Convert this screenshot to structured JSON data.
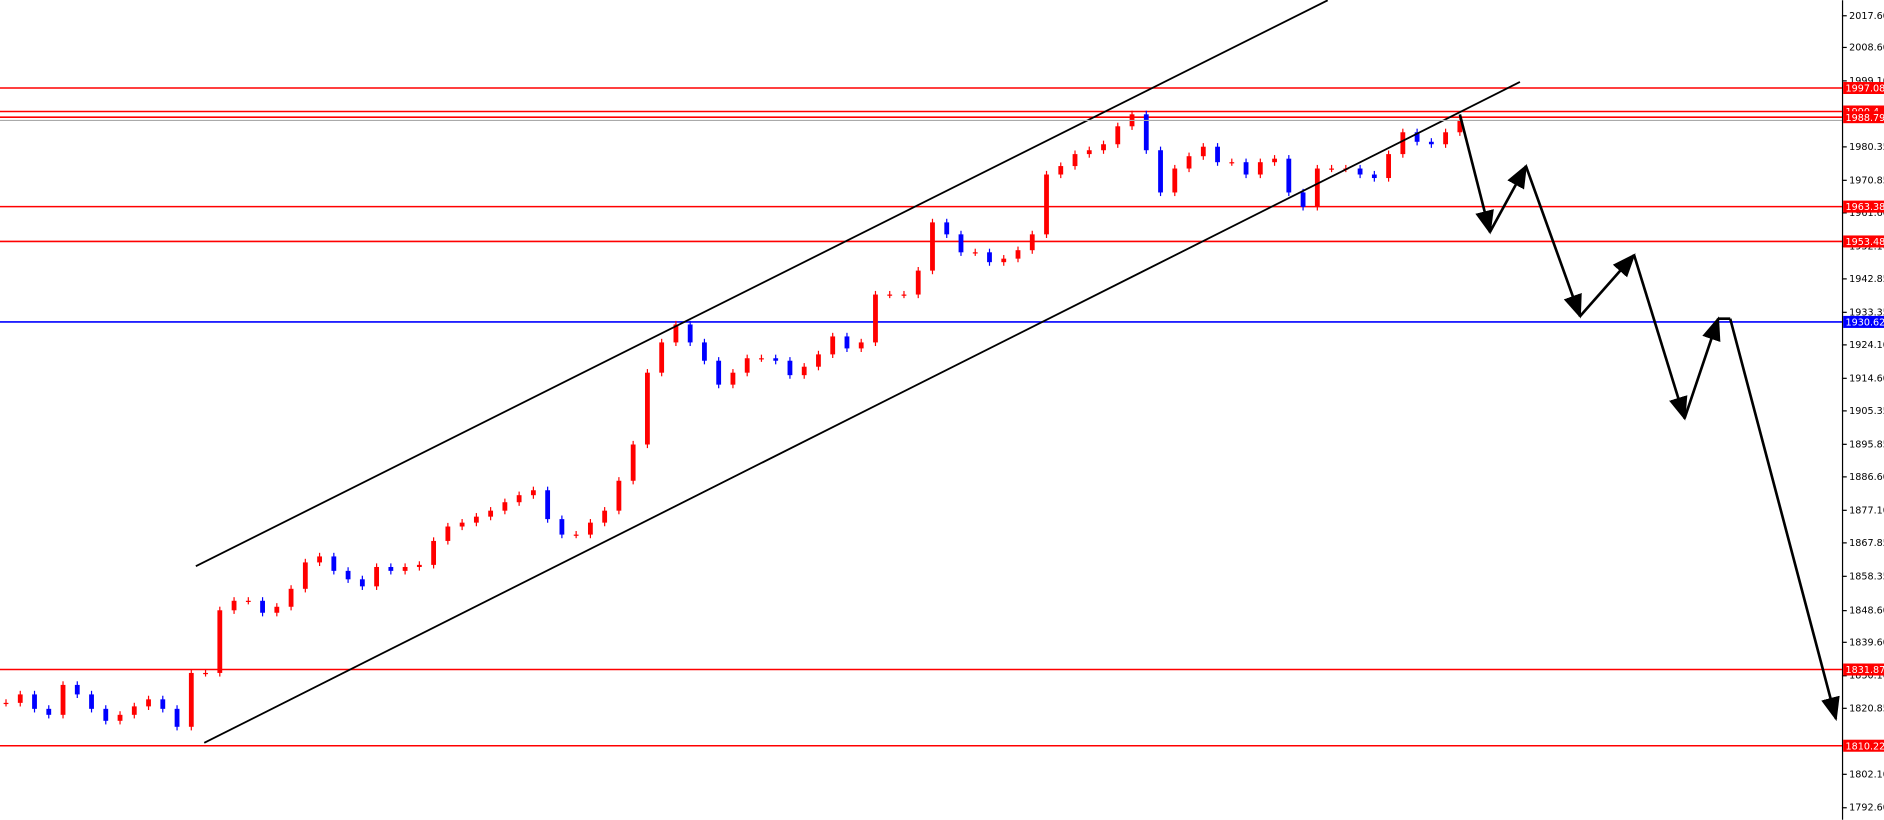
{
  "chart_data": {
    "type": "candlestick",
    "up_color": "#ff0000",
    "down_color": "#0000ff",
    "ylim": [
      1789.2,
      2022.0
    ],
    "yticks": [
      {
        "value": 2017.6,
        "label": "2017.60"
      },
      {
        "value": 2008.6,
        "label": "2008.60"
      },
      {
        "value": 1999.1,
        "label": "1999.10"
      },
      1980.35,
      1970.85,
      {
        "value": 1961.6,
        "label": "1961.60"
      },
      {
        "value": 1952.1,
        "label": "1952.10"
      },
      1942.85,
      1933.35,
      {
        "value": 1924.1,
        "label": "1924.10"
      },
      {
        "value": 1914.6,
        "label": "1914.60"
      },
      1905.35,
      1895.85,
      {
        "value": 1886.6,
        "label": "1886.60"
      },
      {
        "value": 1877.1,
        "label": "1877.10"
      },
      1867.85,
      1858.35,
      {
        "value": 1848.6,
        "label": "1848.60"
      },
      {
        "value": 1839.6,
        "label": "1839.60"
      },
      {
        "value": 1830.1,
        "label": "1830.10"
      },
      1820.85,
      {
        "value": 1802.1,
        "label": "1802.10"
      },
      {
        "value": 1792.6,
        "label": "1792.60"
      }
    ],
    "levels": [
      {
        "value": 1997.08,
        "color": "#ff0000"
      },
      {
        "value": 1990.4,
        "color": "#ff0000"
      },
      {
        "value": 1988.79,
        "color": "#ff0000"
      },
      {
        "value": 1963.38,
        "color": "#ff0000"
      },
      {
        "value": 1953.48,
        "color": "#ff0000"
      },
      {
        "value": 1930.62,
        "color": "#0000ff"
      },
      {
        "value": 1831.87,
        "color": "#ff0000"
      },
      {
        "value": 1810.22,
        "color": "#ff0000"
      }
    ],
    "values": [
      1822.4,
      1824.8,
      1820.7,
      1819,
      1827.5,
      1824.8,
      1820.7,
      1817.3,
      1819,
      1821.4,
      1823.4,
      1820.7,
      1815.6,
      1830.9,
      1830.9,
      1848.7,
      1851.4,
      1851.4,
      1848,
      1849.7,
      1854.8,
      1862.3,
      1864,
      1859.9,
      1857.5,
      1855.5,
      1861,
      1859.9,
      1861,
      1861.6,
      1868.4,
      1872.5,
      1873.6,
      1875.3,
      1877,
      1879.4,
      1881.4,
      1882.8,
      1874.6,
      1870.2,
      1870.2,
      1873.6,
      1877,
      1885.5,
      1895.8,
      1916.2,
      1924.8,
      1929.9,
      1924.8,
      1919.6,
      1912.8,
      1916.2,
      1920.3,
      1920.3,
      1919.6,
      1915.5,
      1917.9,
      1921.4,
      1926.5,
      1923.1,
      1924.8,
      1938.4,
      1938.4,
      1938.4,
      1945.2,
      1958.9,
      1955.5,
      1950.4,
      1950.4,
      1947.6,
      1948.6,
      1951,
      1955.5,
      1972.5,
      1974.9,
      1978.3,
      1979.4,
      1981.1,
      1986.2,
      1989.6,
      1979.4,
      1967.4,
      1974.2,
      1977.7,
      1980.4,
      1976,
      1976,
      1972.5,
      1976,
      1977,
      1967.4,
      1963.3,
      1974.2,
      1974.2,
      1974.2,
      1972.5,
      1971.5,
      1978.3,
      1984.5,
      1981.8,
      1981.1,
      1984.5,
      1987.9
    ]
  }
}
